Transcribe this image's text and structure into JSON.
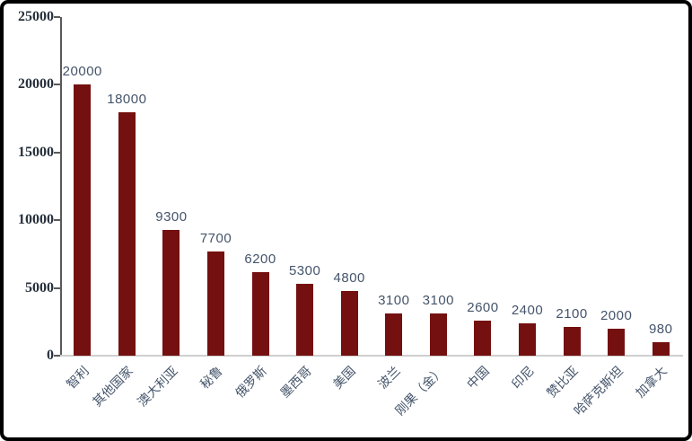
{
  "chart_data": {
    "type": "bar",
    "title": "",
    "xlabel": "",
    "ylabel": "",
    "categories": [
      "智利",
      "其他国家",
      "澳大利亚",
      "秘鲁",
      "俄罗斯",
      "墨西哥",
      "美国",
      "波兰",
      "刚果（金）",
      "中国",
      "印尼",
      "赞比亚",
      "哈萨克斯坦",
      "加拿大"
    ],
    "values": [
      20000,
      18000,
      9300,
      7700,
      6200,
      5300,
      4800,
      3100,
      3100,
      2600,
      2400,
      2100,
      2000,
      980
    ],
    "data_labels": [
      "20000",
      "18000",
      "9300",
      "7700",
      "6200",
      "5300",
      "4800",
      "3100",
      "3100",
      "2600",
      "2400",
      "2100",
      "2000",
      "980"
    ],
    "ylim": [
      0,
      25000
    ],
    "yticks": [
      0,
      5000,
      10000,
      15000,
      20000,
      25000
    ],
    "ytick_labels": [
      "0",
      "5000",
      "10000",
      "15000",
      "20000",
      "25000"
    ],
    "grid": false,
    "legend": "none",
    "x_label_rotation_deg": -45
  },
  "colors": {
    "bar": "#74100F",
    "value_label": "#44546A",
    "axis_tick_label": "#26303B",
    "x_category_label": "#44546A",
    "y_axis_line": "#595959",
    "x_baseline": "#CFCFCF",
    "frame_border": "#000000",
    "background": "#FFFFFF"
  }
}
